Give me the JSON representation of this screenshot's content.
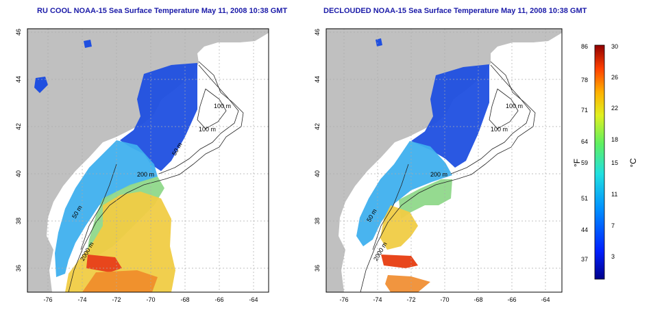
{
  "maps": [
    {
      "title": "RU COOL NOAA-15 Sea Surface Temperature May 11, 2008 10:38 GMT",
      "contour_labels": [
        "100 m",
        "100 m",
        "200 m",
        "50 m",
        "50 m",
        "2000 m"
      ]
    },
    {
      "title": "DECLOUDED NOAA-15 Sea Surface Temperature May 11, 2008 10:38 GMT",
      "contour_labels": [
        "100 m",
        "100 m",
        "200 m",
        "50 m",
        "2000 m"
      ]
    }
  ],
  "axes": {
    "x_ticks": [
      "-76",
      "-74",
      "-72",
      "-70",
      "-68",
      "-66",
      "-64"
    ],
    "y_ticks": [
      "36",
      "38",
      "40",
      "42",
      "44",
      "46"
    ]
  },
  "colorbar": {
    "fahrenheit_label": "°F",
    "celsius_label": "°C",
    "fahrenheit_ticks": [
      "86",
      "78",
      "71",
      "64",
      "59",
      "51",
      "44",
      "37"
    ],
    "celsius_ticks": [
      "30",
      "26",
      "22",
      "18",
      "15",
      "11",
      "7",
      "3"
    ]
  },
  "colors": {
    "title": "#1a1aa8",
    "land": "#c0c0c0",
    "cold": "#1a3fd6",
    "cool": "#3fa6ec",
    "mild": "#7fe0a0",
    "warm": "#f2d040",
    "hot": "#e83a1a"
  }
}
